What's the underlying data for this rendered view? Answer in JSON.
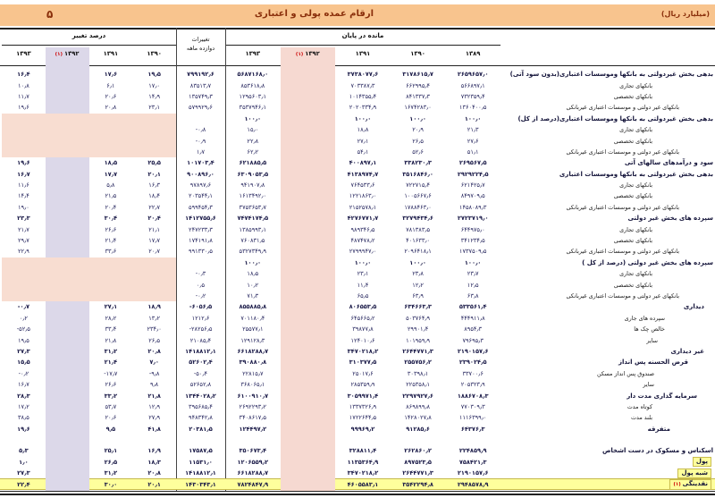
{
  "page": {
    "number": "5",
    "title": "ارقام عمده پولی و اعتباری",
    "unit": "(میلیارد ریال)"
  },
  "header": {
    "pct_group": "درصد تغییر",
    "chg_group_line1": "تغییرات",
    "chg_group_line2": "دوازده ماهه",
    "bal_group": "مانده در پایان",
    "pct_years": [
      "1393",
      "1392",
      "1391",
      "1390"
    ],
    "bal_years": [
      "1393",
      "1392",
      "1391",
      "1390",
      "1389"
    ],
    "footnote_mark": "(1)"
  },
  "band_label": "تغییر سهم(واحد درصد)",
  "rows": [
    {
      "label": "بدهی بخش غیردولتی به بانکها وموسسات اعتباری(بدون سود آتی)",
      "bold": true,
      "ind": 2,
      "pct": [
        "16.4",
        "30.8",
        "17.6",
        "19.5"
      ],
      "chg": "799192.6",
      "bal": [
        "5687168.0",
        "4887975.4",
        "3738077.6",
        "3178615.7",
        "2659657.0"
      ]
    },
    {
      "label": "بانکهای تجاری",
      "ind": 70,
      "pct": [
        "10.8",
        "9.5",
        "6.1",
        "17.0"
      ],
      "chg": "83513.7",
      "bal": [
        "853618.8",
        "770105.1",
        "703387.3",
        "662995.4",
        "566897.1"
      ]
    },
    {
      "label": "بانکهای تخصصی",
      "ind": 70,
      "pct": [
        "11.7",
        "14.3",
        "20.6",
        "14.9"
      ],
      "chg": "135749.3",
      "bal": [
        "1295603.1",
        "1159853.8",
        "1014355.4",
        "841337.3",
        "732359.4"
      ]
    },
    {
      "label": "بانکهای غیر دولتی و موسسات اعتباری غیربانکی",
      "ind": 40,
      "pct": [
        "19.6",
        "46.4",
        "20.8",
        "23.1"
      ],
      "chg": "579929.6",
      "bal": [
        "3537946.1",
        "2958016.5",
        "2020334.9",
        "1674283.0",
        "1360400.5"
      ]
    },
    {
      "label": "بدهی بخش غیردولتی به بانکها وموسسات اعتباری(درصد از کل)",
      "bold": true,
      "ind": 2,
      "band": true,
      "bal": [
        "100.0",
        "100.0",
        "100.0",
        "100.0",
        "100.0"
      ]
    },
    {
      "label": "بانکهای تجاری",
      "ind": 70,
      "pct": [
        "-0.8",
        "-3.0",
        "-2.1",
        "-0.4"
      ],
      "chg": "-0.8",
      "bal": [
        "15.0",
        "15.8",
        "18.8",
        "20.9",
        "21.3"
      ]
    },
    {
      "label": "بانکهای تخصصی",
      "ind": 70,
      "pct": [
        "-0.9",
        "-3.4",
        "0.6",
        "-1.1"
      ],
      "chg": "-0.9",
      "bal": [
        "22.8",
        "23.7",
        "27.1",
        "26.5",
        "27.6"
      ]
    },
    {
      "label": "بانکهای غیر دولتی و موسسات اعتباری غیربانکی",
      "ind": 40,
      "pct": [
        "1.7",
        "6.4",
        "1.5",
        "1.5"
      ],
      "chg": "1.7",
      "bal": [
        "62.2",
        "60.5",
        "54.1",
        "52.6",
        "51.1"
      ]
    },
    {
      "label": "سود و درآمدهای سالهای آتی",
      "bold": true,
      "ind": 2,
      "pct": [
        "19.6",
        "29.8",
        "18.5",
        "25.5"
      ],
      "chg": "101703.4",
      "bal": [
        "621885.5",
        "520182.1",
        "400897.1",
        "338230.3",
        "269567.5"
      ]
    },
    {
      "label": "بدهی بخش غیردولتی به بانکها وموسسات اعتباری",
      "bold": true,
      "ind": 2,
      "pct": [
        "16.7",
        "30.7",
        "17.7",
        "20.1"
      ],
      "chg": "900896.0",
      "bal": [
        "6309053.5",
        "5408157.5",
        "4138974.7",
        "3516846.0",
        "2929224.5"
      ]
    },
    {
      "label": "بانکهای تجاری",
      "ind": 70,
      "pct": [
        "11.6",
        "10.4",
        "5.8",
        "16.3"
      ],
      "chg": "97897.6",
      "bal": [
        "941907.8",
        "844010.2",
        "764533.6",
        "722715.4",
        "621425.7"
      ]
    },
    {
      "label": "بانکهای تخصصی",
      "ind": 70,
      "pct": [
        "14.4",
        "15.4",
        "21.5",
        "18.4"
      ],
      "chg": "203544.1",
      "bal": [
        "1613492.0",
        "1409947.9",
        "1221863.0",
        "1005667.6",
        "849709.5"
      ]
    },
    {
      "label": "بانکهای غیر دولتی و موسسات اعتباری غیربانکی",
      "ind": 40,
      "pct": [
        "19.0",
        "46.5",
        "20.4",
        "22.7"
      ],
      "chg": "599454.3",
      "bal": [
        "3753653.7",
        "3154199.4",
        "2152578.1",
        "1788463.0",
        "1458089.3"
      ]
    },
    {
      "label": "سپرده های بخش غیر دولتی",
      "bold": true,
      "ind": 2,
      "pct": [
        "23.3",
        "41.7",
        "30.4",
        "20.4"
      ],
      "chg": "1412755.6",
      "bal": [
        "7474174.5",
        "6061418.9",
        "4276771.7",
        "3279434.6",
        "2723719.0"
      ]
    },
    {
      "label": "بانکهای تجاری",
      "ind": 70,
      "pct": [
        "21.7",
        "15.1",
        "26.6",
        "21.1"
      ],
      "chg": "247233.3",
      "bal": [
        "1385993.1",
        "1138759.8",
        "989346.5",
        "781383.5",
        "644975.0"
      ]
    },
    {
      "label": "بانکهای تخصصی",
      "ind": 70,
      "pct": [
        "29.7",
        "20.3",
        "21.4",
        "17.7"
      ],
      "chg": "174191.8",
      "bal": [
        "760831.5",
        "586639.7",
        "487478.2",
        "401633.0",
        "341234.5"
      ]
    },
    {
      "label": "بانکهای غیر دولتی و موسسات اعتباری غیربانکی",
      "ind": 40,
      "pct": [
        "22.9",
        "54.9",
        "33.6",
        "20.7"
      ],
      "chg": "991330.5",
      "bal": [
        "5327349.9",
        "4336019.4",
        "2799947.0",
        "2096418.1",
        "1737509.5"
      ]
    },
    {
      "label": "سپرده های بخش غیر دولتی (درصد از کل )",
      "bold": true,
      "ind": 2,
      "band": true,
      "bal": [
        "100.0",
        "100.0",
        "100.0",
        "100.0",
        "100.0"
      ]
    },
    {
      "label": "بانکهای تجاری",
      "ind": 70,
      "pct": [
        "-0.3",
        "-4.3",
        "-0.7",
        "0.1"
      ],
      "chg": "-0.3",
      "bal": [
        "18.5",
        "18.8",
        "23.1",
        "23.8",
        "23.7"
      ]
    },
    {
      "label": "بانکهای تخصصی",
      "ind": 70,
      "pct": [
        "0.5",
        "-1.7",
        "-0.8",
        "-0.3"
      ],
      "chg": "0.5",
      "bal": [
        "10.2",
        "9.7",
        "11.4",
        "12.2",
        "12.5"
      ]
    },
    {
      "label": "بانکهای غیر دولتی و موسسات اعتباری غیربانکی",
      "ind": 40,
      "pct": [
        "-0.2",
        "6.0",
        "1.6",
        "0.1"
      ],
      "chg": "-0.2",
      "bal": [
        "71.3",
        "71.5",
        "65.5",
        "63.9",
        "63.8"
      ]
    },
    {
      "label": "دیداری",
      "bold": true,
      "ind": 12,
      "pct": [
        "-0.7",
        "6.9",
        "27.1",
        "18.9"
      ],
      "chg": "-6056.5",
      "bal": [
        "855885.8",
        "861942.3",
        "806553.5",
        "634663.3",
        "533561.4"
      ]
    },
    {
      "label": "سپرده های جاری",
      "ind": 56,
      "pct": [
        "0.2",
        "8.4",
        "28.2",
        "13.2"
      ],
      "chg": "1212.6",
      "bal": [
        "701180.4",
        "699967.8",
        "645665.2",
        "503764.9",
        "444911.8"
      ]
    },
    {
      "label": "خالص چک ها",
      "ind": 56,
      "pct": [
        "-52.5",
        "35.0",
        "33.4",
        "234.0"
      ],
      "chg": "-28256.5",
      "bal": [
        "25577.1",
        "53833.6",
        "39877.8",
        "29901.4",
        "8954.3"
      ]
    },
    {
      "label": "سایر",
      "ind": 64,
      "pct": [
        "19.5",
        "-12.9",
        "21.8",
        "26.5"
      ],
      "chg": "21085.4",
      "bal": [
        "129128.3",
        "108042.9",
        "124010.6",
        "101959.9",
        "79695.3"
      ]
    },
    {
      "label": "غیر دیداری",
      "bold": true,
      "ind": 12,
      "pct": [
        "27.3",
        "49.8",
        "31.2",
        "20.8"
      ],
      "chg": "1418812.1",
      "bal": [
        "6618288.7",
        "5199476.6",
        "3470218.2",
        "2644771.3",
        "2190157.6"
      ]
    },
    {
      "label": "قرض الحسنه پس انداز",
      "bold": true,
      "ind": 30,
      "pct": [
        "15.5",
        "9.0",
        "21.4",
        "7.0"
      ],
      "chg": "52602.4",
      "bal": [
        "390880.8",
        "338278.4",
        "310377.5",
        "255756.2",
        "239024.5"
      ]
    },
    {
      "label": "صندوق پس انداز مسکن",
      "ind": 68,
      "pct": [
        "-0.2",
        "-8.6",
        "-17.7",
        "-9.8"
      ],
      "chg": "-50.4",
      "bal": [
        "22815.7",
        "22866.1",
        "25017.6",
        "30398.1",
        "33700.6"
      ]
    },
    {
      "label": "سایر",
      "ind": 68,
      "pct": [
        "16.7",
        "10.5",
        "26.6",
        "9.8"
      ],
      "chg": "52652.8",
      "bal": [
        "368065.1",
        "315412.3",
        "285359.9",
        "225358.1",
        "205323.9"
      ]
    },
    {
      "label": "سرمایه گذاری مدت دار",
      "bold": true,
      "ind": 20,
      "pct": [
        "28.3",
        "55.5",
        "33.2",
        "21.8"
      ],
      "chg": "1344028.2",
      "bal": [
        "6100910.7",
        "4756882.5",
        "3059971.4",
        "2297927.6",
        "1886708.3"
      ]
    },
    {
      "label": "کوتاه مدت",
      "ind": 70,
      "pct": [
        "17.2",
        "71.7",
        "53.7",
        "12.9"
      ],
      "chg": "395685.4",
      "bal": [
        "2692293.2",
        "2296607.8",
        "1337326.9",
        "869899.8",
        "770309.3"
      ]
    },
    {
      "label": "بلند مدت",
      "ind": 70,
      "pct": [
        "38.5",
        "42.8",
        "20.6",
        "27.9"
      ],
      "chg": "948342.8",
      "bal": [
        "3408617.5",
        "2460274.7",
        "1722644.5",
        "1428027.8",
        "1116399.0"
      ]
    },
    {
      "label": "متفرقه",
      "bold": true,
      "ind": 50,
      "pct": [
        "19.6",
        "4.1",
        "9.5",
        "41.8"
      ],
      "chg": "20381.5",
      "bal": [
        "124497.2",
        "104115.7",
        "99969.2",
        "91285.6",
        "64376.3"
      ]
    },
    {
      "spacer": true
    },
    {
      "label": "اسکناس و مسکوک در دست اشخاص",
      "bold": true,
      "ind": 2,
      "pct": [
        "5.3",
        "1.3",
        "25.1",
        "16.9"
      ],
      "chg": "17587.5",
      "bal": [
        "350673.4",
        "333085.9",
        "328811.4",
        "262860.2",
        "224859.9"
      ]
    },
    {
      "label": "پول",
      "bold": true,
      "ind": 4,
      "highlight": "label",
      "pct": [
        "1.0",
        "5.3",
        "26.5",
        "18.3"
      ],
      "chg": "11531.0",
      "bal": [
        "1206559.2",
        "1195028.2",
        "1135364.9",
        "897523.5",
        "758421.3"
      ]
    },
    {
      "label": "شبه پول",
      "bold": true,
      "ind": 4,
      "highlight": "label",
      "pct": [
        "27.3",
        "49.8",
        "31.2",
        "20.8"
      ],
      "chg": "1418812.1",
      "bal": [
        "6618288.7",
        "5199476.6",
        "3470218.2",
        "2644771.3",
        "2190157.6"
      ]
    },
    {
      "label": "نقدینگی",
      "mark": "(1)",
      "bold": true,
      "ind": 4,
      "highlight": "row",
      "pct": [
        "22.4",
        "38.8",
        "30.0",
        "20.1"
      ],
      "chg": "1430343.1",
      "bal": [
        "7824847.9",
        "6394504.8",
        "4605583.1",
        "3542294.8",
        "2948578.9"
      ]
    }
  ]
}
